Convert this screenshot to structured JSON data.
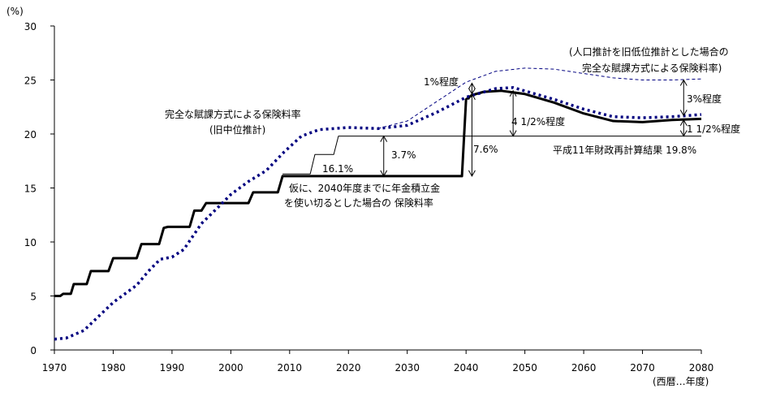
{
  "chart_data": {
    "type": "line",
    "ylabel": "(%)",
    "xlabel": "(西暦…年度)",
    "xlim": [
      1970,
      2080
    ],
    "ylim": [
      0,
      30
    ],
    "xticks": [
      1970,
      1980,
      1990,
      2000,
      2010,
      2020,
      2030,
      2040,
      2050,
      2060,
      2070,
      2080
    ],
    "yticks": [
      0,
      5,
      10,
      15,
      20,
      25,
      30
    ],
    "grid": false,
    "series": [
      {
        "name": "仮に、2040年度までに年金積立金を使い切るとした場合の保険料率",
        "style": "thick-solid",
        "color": "#000000",
        "x": [
          1970,
          1971,
          1971.5,
          1972,
          1972.8,
          1973.3,
          1975.5,
          1976.2,
          1979.2,
          1980,
          1984,
          1984.8,
          1987.8,
          1988.6,
          1989.3,
          1990,
          1993,
          1993.8,
          1995,
          1995.8,
          2003,
          2003.8,
          2008,
          2008.8,
          2039.3,
          2040,
          2041,
          2043,
          2046,
          2050,
          2055,
          2060,
          2065,
          2070,
          2075,
          2080
        ],
        "y": [
          5.0,
          5.0,
          5.2,
          5.2,
          5.2,
          6.1,
          6.1,
          7.3,
          7.3,
          8.5,
          8.5,
          9.8,
          9.8,
          11.3,
          11.4,
          11.4,
          11.4,
          12.9,
          12.9,
          13.6,
          13.6,
          14.6,
          14.6,
          16.1,
          16.1,
          23.2,
          23.6,
          23.9,
          24.0,
          23.7,
          22.9,
          21.9,
          21.2,
          21.1,
          21.3,
          21.4
        ]
      },
      {
        "name": "平成11年財政再計算結果",
        "style": "thin-solid",
        "color": "#000000",
        "x": [
          2008.8,
          2013.5,
          2014.3,
          2017.5,
          2018.3,
          2080
        ],
        "y": [
          16.3,
          16.3,
          18.1,
          18.1,
          19.8,
          19.8
        ]
      },
      {
        "name": "完全な賦課方式による保険料率(旧中位推計)",
        "style": "thick-dotted",
        "color": "#000080",
        "x": [
          1970,
          1972,
          1975,
          1980,
          1984,
          1986,
          1988,
          1990,
          1992,
          1995,
          1998,
          2000,
          2003,
          2006,
          2009,
          2012,
          2015,
          2020,
          2025,
          2030,
          2035,
          2040,
          2045,
          2048,
          2055,
          2060,
          2065,
          2070,
          2075,
          2080
        ],
        "y": [
          1.0,
          1.1,
          1.8,
          4.4,
          6.0,
          7.3,
          8.4,
          8.6,
          9.3,
          11.7,
          13.3,
          14.4,
          15.6,
          16.6,
          18.3,
          19.8,
          20.4,
          20.6,
          20.5,
          20.8,
          22.0,
          23.4,
          24.2,
          24.3,
          23.2,
          22.3,
          21.6,
          21.5,
          21.6,
          21.8
        ]
      },
      {
        "name": "人口推計を旧低位推計とした場合の完全な賦課方式による保険料率",
        "style": "thin-dashed",
        "color": "#000080",
        "x": [
          2025,
          2030,
          2035,
          2040,
          2045,
          2050,
          2055,
          2060,
          2065,
          2070,
          2075,
          2080
        ],
        "y": [
          20.5,
          21.2,
          23.0,
          24.8,
          25.8,
          26.1,
          26.0,
          25.6,
          25.2,
          25.0,
          25.0,
          25.1
        ]
      }
    ],
    "annotations": [
      {
        "text": "16.1%"
      },
      {
        "text": "3.7%",
        "from": 16.1,
        "to": 19.8,
        "x": 2026
      },
      {
        "text": "7.6%",
        "from": 16.1,
        "to": 23.7,
        "x": 2041
      },
      {
        "text": "1%程度",
        "from": 23.7,
        "to": 24.7,
        "x": 2041
      },
      {
        "text": "4 1/2%程度",
        "from": 19.8,
        "to": 24.0,
        "x": 2048
      },
      {
        "text": "3%程度",
        "from": 21.7,
        "to": 25.0,
        "x": 2077
      },
      {
        "text": "1 1/2%程度",
        "from": 19.8,
        "to": 21.3,
        "x": 2077
      },
      {
        "text": "平成11年財政再計算結果  19.8%"
      },
      {
        "text": "完全な賦課方式による保険料率"
      },
      {
        "text": "(旧中位推計)"
      },
      {
        "text": "仮に、2040年度までに年金積立金"
      },
      {
        "text": "を使い切るとした場合の 保険料率"
      },
      {
        "text": "(人口推計を旧低位推計とした場合の"
      },
      {
        "text": "完全な賦課方式による保険料率)"
      }
    ]
  }
}
